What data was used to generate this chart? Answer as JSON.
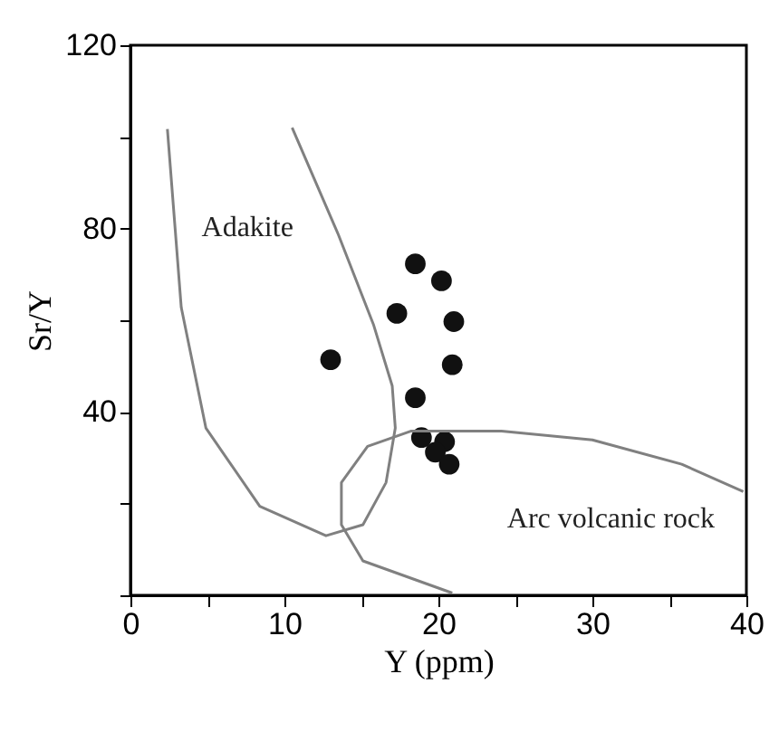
{
  "chart_data": {
    "type": "scatter",
    "xlabel": "Y (ppm)",
    "ylabel": "Sr/Y",
    "xlim": [
      0,
      40
    ],
    "ylim": [
      0,
      120
    ],
    "xticks": [
      0,
      {
        "value": 5,
        "label": null
      },
      10,
      {
        "value": 15,
        "label": null
      },
      20,
      {
        "value": 25,
        "label": null
      },
      30,
      {
        "value": 35,
        "label": null
      },
      40
    ],
    "yticks": [
      {
        "value": 0,
        "label": null
      },
      {
        "value": 20,
        "label": null
      },
      40,
      {
        "value": 60,
        "label": null
      },
      80,
      {
        "value": 100,
        "label": null
      },
      120
    ],
    "grid": false,
    "series": [
      {
        "marker": "circle",
        "color": "#111111",
        "x": [
          13.0,
          17.3,
          18.5,
          20.2,
          21.0,
          20.9,
          18.5,
          18.9,
          20.4,
          19.8,
          20.7
        ],
        "values": [
          51.4,
          61.5,
          72.3,
          68.6,
          59.7,
          50.3,
          43.1,
          34.4,
          33.5,
          31.2,
          28.6
        ]
      },
      {
        "type": "line",
        "line_style": "solid",
        "color": "#808080",
        "x": [
          2.4,
          3.3,
          4.9,
          8.4,
          12.7,
          15.1,
          16.6,
          17.2,
          17.0,
          15.8,
          13.5,
          10.5
        ],
        "values": [
          101.7,
          62.8,
          36.5,
          19.4,
          13.0,
          15.4,
          24.6,
          36.5,
          45.7,
          58.9,
          78.7,
          102
        ]
      },
      {
        "type": "line",
        "line_style": "solid",
        "color": "#808080",
        "x": [
          20.9,
          15.1,
          13.7,
          13.7,
          15.4,
          18.2,
          24.1,
          30.0,
          35.8,
          39.8
        ],
        "values": [
          0.5,
          7.5,
          15.4,
          24.6,
          32.5,
          35.8,
          35.8,
          33.9,
          28.6,
          22.6
        ]
      }
    ],
    "annotations": [
      "Adakite",
      "Arc volcanic rock"
    ]
  }
}
